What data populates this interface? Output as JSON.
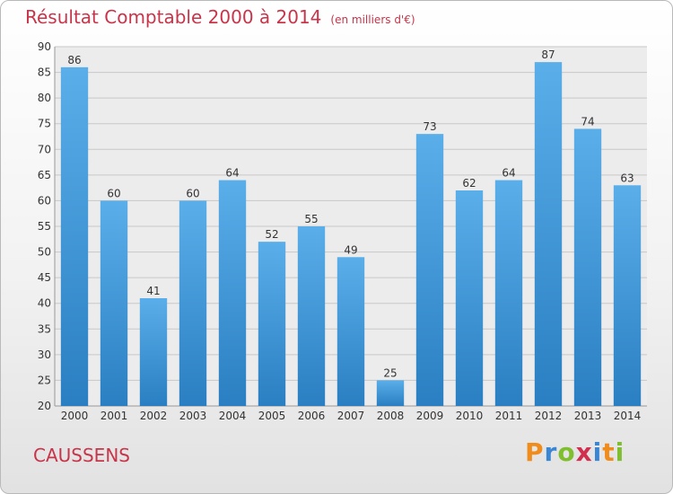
{
  "title": "Résultat Comptable 2000 à 2014",
  "unit_note": "(en milliers d'€)",
  "commune": "CAUSSENS",
  "logo": "Proxiti",
  "colors": {
    "title": "#c8344a",
    "bar_top": "#5aaee9",
    "bar_bottom": "#2a7fc2",
    "grid": "#c8c8c8",
    "axis_text": "#333333"
  },
  "chart_data": {
    "type": "bar",
    "title": "Résultat Comptable 2000 à 2014",
    "subtitle": "(en milliers d'€)",
    "xlabel": "",
    "ylabel": "",
    "categories": [
      "2000",
      "2001",
      "2002",
      "2003",
      "2004",
      "2005",
      "2006",
      "2007",
      "2008",
      "2009",
      "2010",
      "2011",
      "2012",
      "2013",
      "2014"
    ],
    "values": [
      86,
      60,
      41,
      60,
      64,
      52,
      55,
      49,
      25,
      73,
      62,
      64,
      87,
      74,
      63
    ],
    "ylim": [
      20,
      90
    ],
    "yticks": [
      20,
      25,
      30,
      35,
      40,
      45,
      50,
      55,
      60,
      65,
      70,
      75,
      80,
      85,
      90
    ],
    "grid": "horizontal",
    "data_labels": true,
    "legend": "none"
  }
}
